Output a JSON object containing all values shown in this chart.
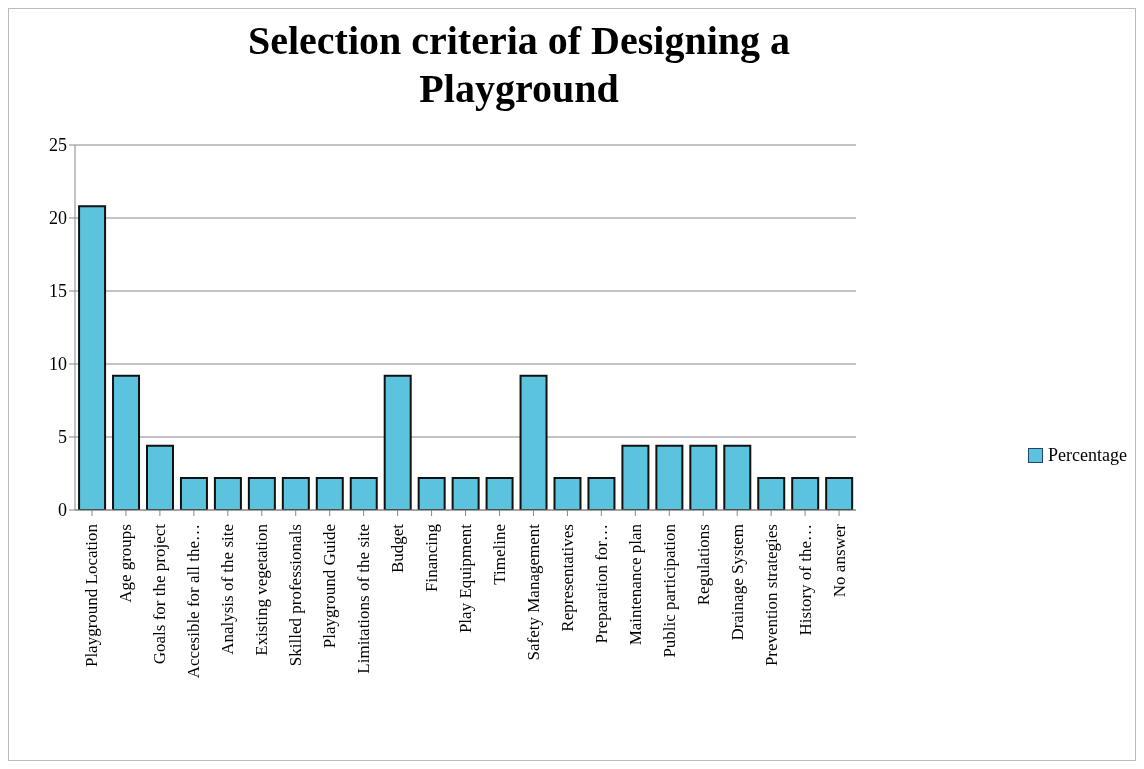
{
  "chart_data": {
    "type": "bar",
    "title": "Selection criteria of Designing a Playground",
    "categories": [
      "Playground Location",
      "Age groups",
      "Goals for the project",
      "Accesible for all the…",
      "Analysis of the site",
      "Existing vegetation",
      "Skilled professionals",
      "Playground Guide",
      "Limitations of the site",
      "Budget",
      "Financing",
      "Play Equipment",
      "Timeline",
      "Safety Management",
      "Representatives",
      "Preparation for…",
      "Maintenance plan",
      "Public participation",
      "Regulations",
      "Drainage System",
      "Prevention strategies",
      "History of the…",
      "No answer"
    ],
    "series": [
      {
        "name": "Percentage",
        "color": "#5cc3df",
        "values": [
          20.8,
          9.2,
          4.4,
          2.2,
          2.2,
          2.2,
          2.2,
          2.2,
          2.2,
          9.2,
          2.2,
          2.2,
          2.2,
          9.2,
          2.2,
          2.2,
          4.4,
          4.4,
          4.4,
          4.4,
          2.2,
          2.2,
          2.2
        ]
      }
    ],
    "ylim": [
      0,
      25
    ],
    "yticks": [
      0,
      5,
      10,
      15,
      20,
      25
    ],
    "grid": "y",
    "legend": "right"
  }
}
